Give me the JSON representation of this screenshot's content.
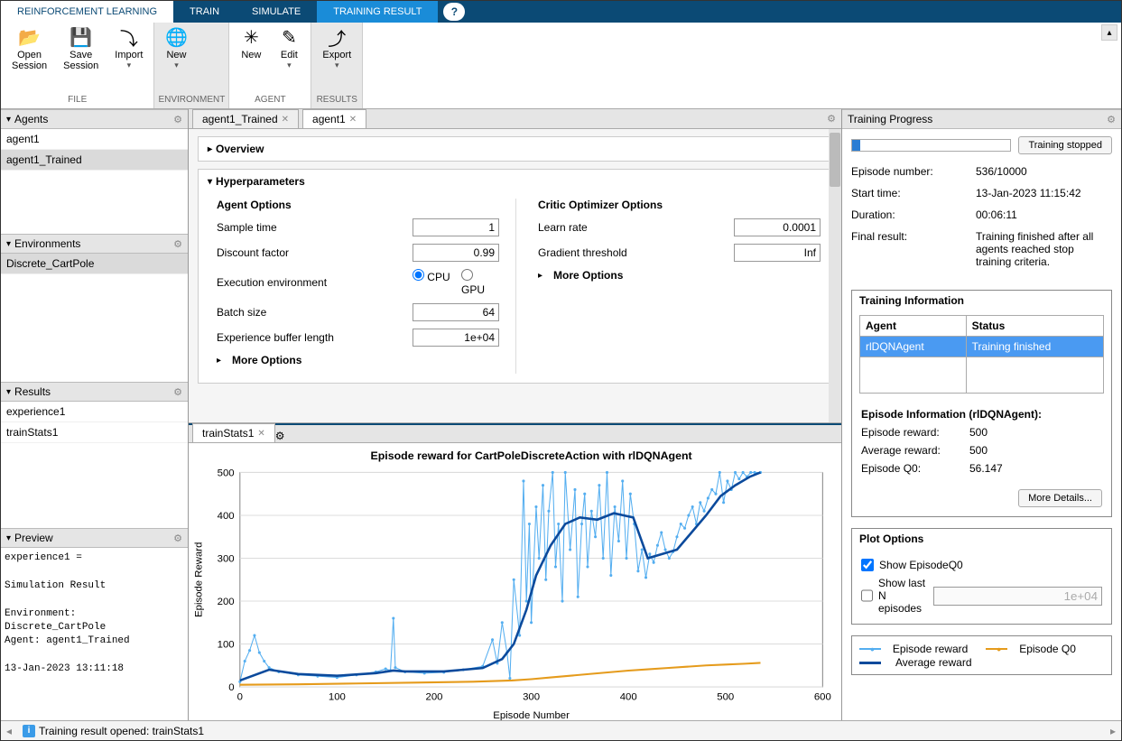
{
  "top_tabs": {
    "rl": "REINFORCEMENT LEARNING",
    "train": "TRAIN",
    "simulate": "SIMULATE",
    "result": "TRAINING RESULT"
  },
  "ribbon": {
    "file": {
      "label": "FILE",
      "open_session": "Open\nSession",
      "save_session": "Save\nSession",
      "import": "Import"
    },
    "environment": {
      "label": "ENVIRONMENT",
      "new": "New"
    },
    "agent": {
      "label": "AGENT",
      "new": "New",
      "edit": "Edit"
    },
    "results": {
      "label": "RESULTS",
      "export": "Export"
    }
  },
  "left": {
    "agents_title": "Agents",
    "agents": [
      "agent1",
      "agent1_Trained"
    ],
    "envs_title": "Environments",
    "envs": [
      "Discrete_CartPole"
    ],
    "results_title": "Results",
    "results": [
      "experience1",
      "trainStats1"
    ],
    "preview_title": "Preview",
    "preview_text": "experience1 = \n\nSimulation Result\n\nEnvironment:\nDiscrete_CartPole\nAgent: agent1_Trained\n\n13-Jan-2023 13:11:18"
  },
  "center": {
    "tabs": [
      "agent1_Trained",
      "agent1"
    ],
    "overview_title": "Overview",
    "hyper_title": "Hyperparameters",
    "agent_options_title": "Agent Options",
    "critic_options_title": "Critic Optimizer Options",
    "fields": {
      "sample_time": {
        "label": "Sample time",
        "value": "1"
      },
      "discount": {
        "label": "Discount factor",
        "value": "0.99"
      },
      "exec_env": {
        "label": "Execution environment",
        "cpu": "CPU",
        "gpu": "GPU"
      },
      "batch": {
        "label": "Batch size",
        "value": "64"
      },
      "buffer": {
        "label": "Experience buffer length",
        "value": "1e+04"
      },
      "learn_rate": {
        "label": "Learn rate",
        "value": "0.0001"
      },
      "grad_thresh": {
        "label": "Gradient threshold",
        "value": "Inf"
      },
      "more_options": "More Options"
    },
    "chart_tab": "trainStats1",
    "chart": {
      "title": "Episode reward for CartPoleDiscreteAction with rlDQNAgent",
      "xlabel": "Episode Number",
      "ylabel": "Episode Reward",
      "xlim": [
        0,
        600
      ],
      "xtick_step": 100,
      "ylim": [
        0,
        500
      ],
      "ytick_step": 100,
      "colors": {
        "episode_reward": "#54aef0",
        "average_reward": "#0b4a9c",
        "episode_q0": "#e59b1c",
        "grid": "#dcdcdc",
        "background": "#ffffff"
      },
      "episode_reward": [
        [
          0,
          12
        ],
        [
          5,
          60
        ],
        [
          10,
          85
        ],
        [
          15,
          120
        ],
        [
          20,
          80
        ],
        [
          25,
          60
        ],
        [
          30,
          45
        ],
        [
          40,
          35
        ],
        [
          60,
          28
        ],
        [
          80,
          25
        ],
        [
          100,
          22
        ],
        [
          120,
          28
        ],
        [
          140,
          35
        ],
        [
          150,
          42
        ],
        [
          155,
          38
        ],
        [
          158,
          160
        ],
        [
          160,
          45
        ],
        [
          170,
          35
        ],
        [
          190,
          32
        ],
        [
          210,
          34
        ],
        [
          230,
          40
        ],
        [
          250,
          48
        ],
        [
          260,
          110
        ],
        [
          265,
          55
        ],
        [
          270,
          150
        ],
        [
          275,
          80
        ],
        [
          278,
          20
        ],
        [
          282,
          250
        ],
        [
          288,
          120
        ],
        [
          292,
          480
        ],
        [
          295,
          200
        ],
        [
          298,
          380
        ],
        [
          300,
          150
        ],
        [
          305,
          420
        ],
        [
          308,
          300
        ],
        [
          312,
          470
        ],
        [
          315,
          250
        ],
        [
          318,
          410
        ],
        [
          322,
          500
        ],
        [
          325,
          280
        ],
        [
          328,
          380
        ],
        [
          332,
          200
        ],
        [
          335,
          500
        ],
        [
          340,
          320
        ],
        [
          345,
          460
        ],
        [
          348,
          210
        ],
        [
          352,
          380
        ],
        [
          355,
          450
        ],
        [
          358,
          280
        ],
        [
          362,
          410
        ],
        [
          366,
          350
        ],
        [
          370,
          470
        ],
        [
          374,
          300
        ],
        [
          378,
          500
        ],
        [
          382,
          260
        ],
        [
          386,
          420
        ],
        [
          390,
          340
        ],
        [
          394,
          480
        ],
        [
          398,
          300
        ],
        [
          402,
          450
        ],
        [
          406,
          380
        ],
        [
          410,
          270
        ],
        [
          414,
          320
        ],
        [
          418,
          255
        ],
        [
          422,
          310
        ],
        [
          426,
          290
        ],
        [
          430,
          330
        ],
        [
          434,
          360
        ],
        [
          438,
          320
        ],
        [
          442,
          300
        ],
        [
          446,
          315
        ],
        [
          450,
          350
        ],
        [
          454,
          380
        ],
        [
          458,
          370
        ],
        [
          462,
          400
        ],
        [
          466,
          420
        ],
        [
          470,
          380
        ],
        [
          474,
          430
        ],
        [
          478,
          410
        ],
        [
          482,
          440
        ],
        [
          486,
          460
        ],
        [
          490,
          450
        ],
        [
          494,
          500
        ],
        [
          498,
          430
        ],
        [
          502,
          480
        ],
        [
          506,
          460
        ],
        [
          510,
          500
        ],
        [
          514,
          485
        ],
        [
          518,
          500
        ],
        [
          522,
          490
        ],
        [
          526,
          500
        ],
        [
          530,
          500
        ],
        [
          536,
          500
        ]
      ],
      "average_reward": [
        [
          0,
          15
        ],
        [
          30,
          40
        ],
        [
          60,
          30
        ],
        [
          100,
          26
        ],
        [
          140,
          32
        ],
        [
          158,
          38
        ],
        [
          170,
          36
        ],
        [
          210,
          36
        ],
        [
          250,
          44
        ],
        [
          270,
          65
        ],
        [
          282,
          100
        ],
        [
          295,
          180
        ],
        [
          305,
          260
        ],
        [
          320,
          330
        ],
        [
          335,
          380
        ],
        [
          350,
          395
        ],
        [
          368,
          390
        ],
        [
          385,
          405
        ],
        [
          405,
          395
        ],
        [
          420,
          300
        ],
        [
          435,
          310
        ],
        [
          450,
          320
        ],
        [
          465,
          360
        ],
        [
          480,
          400
        ],
        [
          495,
          445
        ],
        [
          510,
          470
        ],
        [
          525,
          490
        ],
        [
          536,
          500
        ]
      ],
      "episode_q0": [
        [
          0,
          5
        ],
        [
          60,
          6
        ],
        [
          120,
          8
        ],
        [
          180,
          10
        ],
        [
          240,
          12
        ],
        [
          280,
          15
        ],
        [
          300,
          18
        ],
        [
          320,
          22
        ],
        [
          340,
          26
        ],
        [
          360,
          30
        ],
        [
          380,
          34
        ],
        [
          400,
          38
        ],
        [
          420,
          41
        ],
        [
          440,
          44
        ],
        [
          460,
          47
        ],
        [
          480,
          50
        ],
        [
          500,
          52
        ],
        [
          520,
          54
        ],
        [
          536,
          56
        ]
      ]
    }
  },
  "right": {
    "title": "Training Progress",
    "stopped_btn": "Training stopped",
    "rows": {
      "episode_number": {
        "k": "Episode number:",
        "v": "536/10000"
      },
      "start_time": {
        "k": "Start time:",
        "v": "13-Jan-2023 11:15:42"
      },
      "duration": {
        "k": "Duration:",
        "v": "00:06:11"
      },
      "final_result": {
        "k": "Final result:",
        "v": "Training finished after all agents reached stop training criteria."
      }
    },
    "training_info_title": "Training Information",
    "table": {
      "agent_h": "Agent",
      "status_h": "Status",
      "agent": "rlDQNAgent",
      "status": "Training finished"
    },
    "episode_info_title": "Episode Information (rlDQNAgent):",
    "episode_reward": {
      "k": "Episode reward:",
      "v": "500"
    },
    "average_reward": {
      "k": "Average reward:",
      "v": "500"
    },
    "episode_q0": {
      "k": "Episode Q0:",
      "v": "56.147"
    },
    "more_details": "More Details...",
    "plot_options_title": "Plot Options",
    "show_q0": "Show EpisodeQ0",
    "show_last_n": "Show last N episodes",
    "last_n_value": "1e+04",
    "legend": {
      "episode_reward": "Episode reward",
      "episode_q0": "Episode Q0",
      "average_reward": "Average reward"
    }
  },
  "status": "Training result opened: trainStats1"
}
